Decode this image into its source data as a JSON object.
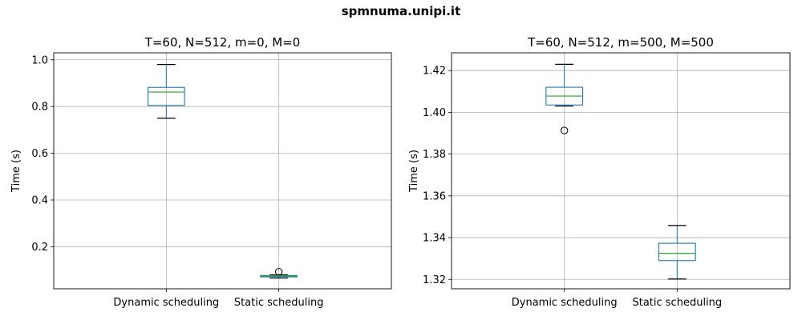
{
  "suptitle": "spmnuma.unipi.it",
  "colors": {
    "box": "#1f77b4",
    "median": "#2ca02c",
    "grid": "#b0b0b0",
    "whisker": "#000000",
    "flier": "#000000"
  },
  "chart_data": [
    {
      "type": "box",
      "title": "T=60, N=512, m=0, M=0",
      "ylabel": "Time (s)",
      "xlabel": "",
      "categories": [
        "Dynamic scheduling",
        "Static scheduling"
      ],
      "ylim": [
        0.02,
        1.03
      ],
      "yticks": [
        0.2,
        0.4,
        0.6,
        0.8,
        1.0
      ],
      "ytick_labels": [
        "0.2",
        "0.4",
        "0.6",
        "0.8",
        "1.0"
      ],
      "grid": true,
      "boxes": [
        {
          "category": "Dynamic scheduling",
          "whislo": 0.75,
          "q1": 0.805,
          "median": 0.862,
          "q3": 0.882,
          "whishi": 0.98,
          "fliers": []
        },
        {
          "category": "Static scheduling",
          "whislo": 0.066,
          "q1": 0.071,
          "median": 0.074,
          "q3": 0.077,
          "whishi": 0.08,
          "fliers": [
            0.093
          ]
        }
      ]
    },
    {
      "type": "box",
      "title": "T=60, N=512, m=500, M=500",
      "ylabel": "Time (s)",
      "xlabel": "",
      "categories": [
        "Dynamic scheduling",
        "Static scheduling"
      ],
      "ylim": [
        1.3155,
        1.4285
      ],
      "yticks": [
        1.32,
        1.34,
        1.36,
        1.38,
        1.4,
        1.42
      ],
      "ytick_labels": [
        "1.32",
        "1.34",
        "1.36",
        "1.38",
        "1.40",
        "1.42"
      ],
      "grid": true,
      "boxes": [
        {
          "category": "Dynamic scheduling",
          "whislo": 1.403,
          "q1": 1.4035,
          "median": 1.4078,
          "q3": 1.412,
          "whishi": 1.423,
          "fliers": [
            1.3913
          ]
        },
        {
          "category": "Static scheduling",
          "whislo": 1.3202,
          "q1": 1.329,
          "median": 1.3325,
          "q3": 1.3373,
          "whishi": 1.3458,
          "fliers": []
        }
      ]
    }
  ]
}
